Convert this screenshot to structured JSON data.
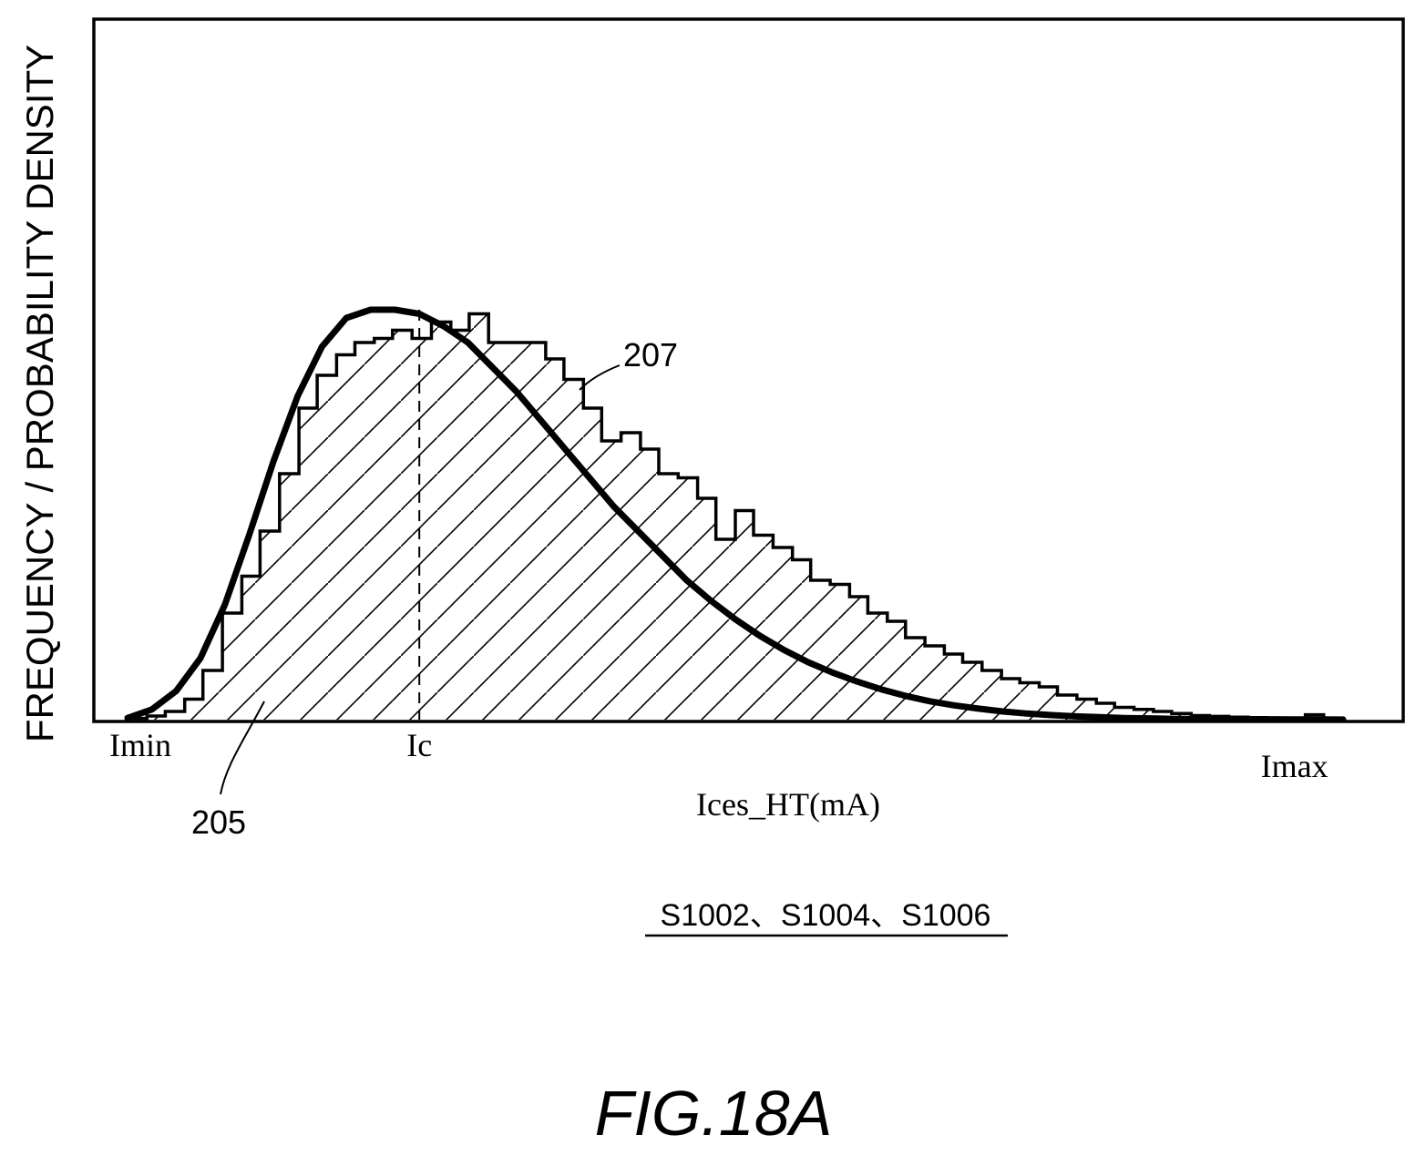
{
  "figure": {
    "label": "FIG.18A",
    "steps_label": "S1002、S1004、S1006"
  },
  "chart_data": {
    "type": "bar",
    "ylabel": "FREQUENCY / PROBABILITY DENSITY",
    "xlabel": "Ices_HT(mA)",
    "grid": false,
    "x_markers": [
      {
        "label": "Imin",
        "x": 0.0
      },
      {
        "label": "Ic",
        "x": 0.24
      },
      {
        "label": "Imax",
        "x": 0.96
      }
    ],
    "reference_numerals": [
      {
        "label": "205",
        "refers_to": "histogram"
      },
      {
        "label": "207",
        "refers_to": "distribution-curve"
      }
    ],
    "xlim": [
      -0.02,
      1.0
    ],
    "ylim": [
      0,
      1.0
    ],
    "histogram": {
      "name": "205",
      "bin_edges": [
        0.0,
        0.016,
        0.031,
        0.047,
        0.062,
        0.078,
        0.094,
        0.109,
        0.125,
        0.141,
        0.156,
        0.172,
        0.187,
        0.203,
        0.218,
        0.234,
        0.25,
        0.266,
        0.281,
        0.297,
        0.312,
        0.328,
        0.344,
        0.359,
        0.375,
        0.39,
        0.406,
        0.422,
        0.437,
        0.453,
        0.469,
        0.484,
        0.5,
        0.515,
        0.531,
        0.547,
        0.562,
        0.578,
        0.594,
        0.609,
        0.625,
        0.64,
        0.656,
        0.672,
        0.687,
        0.703,
        0.719,
        0.734,
        0.75,
        0.765,
        0.781,
        0.797,
        0.812,
        0.828,
        0.844,
        0.859,
        0.875,
        0.89,
        0.906,
        0.922,
        0.937,
        0.953,
        0.969,
        0.984,
        1.0
      ],
      "values": [
        0.003,
        0.009,
        0.02,
        0.05,
        0.12,
        0.26,
        0.35,
        0.46,
        0.6,
        0.76,
        0.84,
        0.89,
        0.92,
        0.93,
        0.95,
        0.93,
        0.97,
        0.95,
        0.99,
        0.92,
        0.92,
        0.92,
        0.88,
        0.83,
        0.76,
        0.68,
        0.7,
        0.66,
        0.6,
        0.59,
        0.54,
        0.44,
        0.51,
        0.45,
        0.42,
        0.39,
        0.34,
        0.33,
        0.3,
        0.26,
        0.24,
        0.2,
        0.18,
        0.16,
        0.14,
        0.12,
        0.1,
        0.09,
        0.08,
        0.06,
        0.05,
        0.04,
        0.03,
        0.025,
        0.02,
        0.015,
        0.01,
        0.008,
        0.006,
        0.005,
        0.004,
        0.004,
        0.012,
        0.003
      ]
    },
    "curve": {
      "name": "207",
      "x": [
        0.0,
        0.02,
        0.04,
        0.06,
        0.08,
        0.1,
        0.12,
        0.14,
        0.16,
        0.18,
        0.2,
        0.22,
        0.24,
        0.26,
        0.28,
        0.3,
        0.32,
        0.34,
        0.36,
        0.38,
        0.4,
        0.42,
        0.44,
        0.46,
        0.48,
        0.5,
        0.52,
        0.54,
        0.56,
        0.58,
        0.6,
        0.62,
        0.64,
        0.66,
        0.68,
        0.7,
        0.72,
        0.74,
        0.76,
        0.78,
        0.8,
        0.82,
        0.84,
        0.86,
        0.88,
        0.9,
        0.92,
        0.94,
        0.96,
        0.98,
        1.0
      ],
      "y": [
        0.004,
        0.025,
        0.07,
        0.15,
        0.28,
        0.45,
        0.63,
        0.79,
        0.91,
        0.98,
        1.0,
        1.0,
        0.99,
        0.96,
        0.92,
        0.86,
        0.8,
        0.73,
        0.66,
        0.59,
        0.52,
        0.46,
        0.4,
        0.34,
        0.29,
        0.245,
        0.205,
        0.17,
        0.14,
        0.115,
        0.093,
        0.074,
        0.058,
        0.045,
        0.035,
        0.027,
        0.02,
        0.015,
        0.011,
        0.008,
        0.006,
        0.004,
        0.003,
        0.002,
        0.0015,
        0.001,
        0.001,
        0.0008,
        0.0006,
        0.0004,
        0.0003
      ]
    }
  }
}
